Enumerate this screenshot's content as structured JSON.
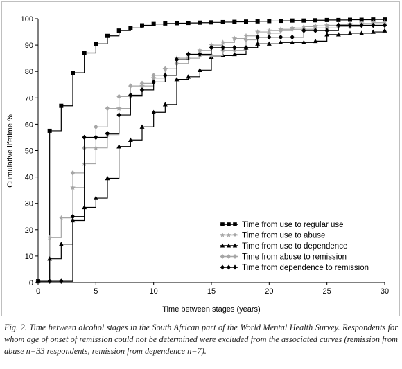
{
  "chart_data": {
    "type": "line",
    "step": true,
    "xlabel": "Time between stages (years)",
    "ylabel": "Cumulative lifetime %",
    "xlim": [
      0,
      30
    ],
    "ylim": [
      0,
      100
    ],
    "xticks": [
      0,
      5,
      10,
      15,
      20,
      25,
      30
    ],
    "yticks": [
      0,
      10,
      20,
      30,
      40,
      50,
      60,
      70,
      80,
      90,
      100
    ],
    "grid": false,
    "legend_position": "bottom-right",
    "series": [
      {
        "name": "Time from use to regular use",
        "color": "#000000",
        "marker": "square",
        "x": [
          0,
          1,
          2,
          3,
          4,
          5,
          6,
          7,
          8,
          9,
          10,
          11,
          12,
          13,
          14,
          15,
          16,
          17,
          18,
          19,
          20,
          21,
          22,
          23,
          24,
          25,
          26,
          27,
          28,
          29,
          30
        ],
        "y": [
          0.5,
          57.5,
          67,
          79.5,
          87,
          90.5,
          93.5,
          95.5,
          96.5,
          97.5,
          98,
          98.2,
          98.3,
          98.4,
          98.5,
          98.6,
          98.7,
          98.8,
          98.9,
          99,
          99.1,
          99.2,
          99.3,
          99.3,
          99.4,
          99.5,
          99.5,
          99.6,
          99.6,
          99.7,
          99.7
        ]
      },
      {
        "name": "Time from use to abuse",
        "color": "#a6a6a6",
        "marker": "star",
        "x": [
          0,
          1,
          2,
          3,
          4,
          5,
          6,
          7,
          8,
          9,
          10,
          11,
          12,
          13,
          14,
          15,
          16,
          17,
          18,
          19,
          20,
          21,
          22,
          23,
          24,
          25,
          26,
          27,
          28,
          29,
          30
        ],
        "y": [
          0.5,
          17,
          24.5,
          36,
          45,
          51,
          56,
          66,
          70.5,
          74.5,
          77.5,
          81,
          85,
          86.5,
          88,
          90,
          91,
          92.5,
          93.5,
          95,
          95.5,
          96,
          96.5,
          97,
          97.3,
          97.5,
          97.8,
          98,
          98.2,
          98.5,
          98.7
        ]
      },
      {
        "name": "Time from use to dependence",
        "color": "#000000",
        "marker": "triangle",
        "x": [
          0,
          1,
          2,
          3,
          4,
          5,
          6,
          7,
          8,
          9,
          10,
          11,
          12,
          13,
          14,
          15,
          16,
          17,
          18,
          19,
          20,
          21,
          22,
          23,
          24,
          25,
          26,
          27,
          28,
          29,
          30
        ],
        "y": [
          0.5,
          9,
          14.5,
          23.5,
          28.5,
          32,
          39.5,
          51.5,
          54,
          59,
          64.5,
          67.5,
          77,
          78,
          80.5,
          85.5,
          86,
          86.5,
          89,
          90.5,
          90.5,
          91,
          91,
          91,
          91.5,
          94,
          94,
          94.5,
          94.5,
          95,
          95.5
        ]
      },
      {
        "name": "Time from abuse to remission",
        "color": "#a6a6a6",
        "marker": "diamond",
        "x": [
          0,
          1,
          2,
          3,
          4,
          5,
          6,
          7,
          8,
          9,
          10,
          11,
          12,
          13,
          14,
          15,
          16,
          17,
          18,
          19,
          20,
          21,
          22,
          23,
          24,
          25,
          26,
          27,
          28,
          29,
          30
        ],
        "y": [
          0.5,
          0.5,
          0.5,
          41.5,
          51,
          59,
          66,
          70.5,
          74.5,
          75.5,
          78.5,
          81,
          83,
          85,
          86,
          86,
          88,
          88,
          92,
          93,
          94.5,
          95.5,
          96,
          96,
          96.5,
          96.5,
          97,
          97,
          97.5,
          97.5,
          98
        ]
      },
      {
        "name": "Time from dependence to remission",
        "color": "#000000",
        "marker": "diamond",
        "x": [
          0,
          1,
          2,
          3,
          4,
          5,
          6,
          7,
          8,
          9,
          10,
          11,
          12,
          13,
          14,
          15,
          16,
          17,
          18,
          19,
          20,
          21,
          22,
          23,
          24,
          25,
          26,
          27,
          28,
          29,
          30
        ],
        "y": [
          0.5,
          0.5,
          0.5,
          25,
          55,
          55,
          56.5,
          63.5,
          71,
          73,
          76,
          78.5,
          84.5,
          86.5,
          86.5,
          89,
          89,
          89,
          89,
          93,
          93,
          93,
          93,
          95.5,
          95.5,
          95.5,
          97.5,
          97.5,
          97.5,
          97.5,
          97.5
        ]
      }
    ]
  },
  "caption": {
    "text": "Fig. 2. Time between alcohol stages in the South African part of the World Mental Health Survey. Respondents for whom age of onset of remission could not be determined were excluded from the associated curves (remission from abuse n=33 respondents, remission from dependence n=7)."
  }
}
